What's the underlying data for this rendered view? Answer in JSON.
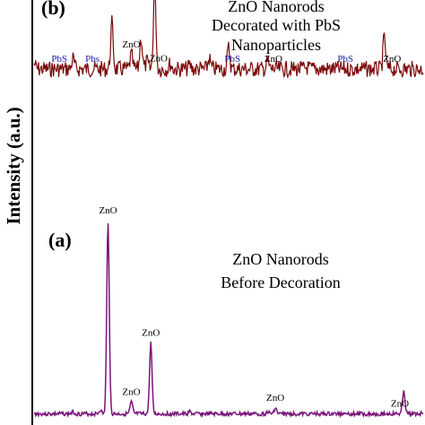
{
  "chart_data": [
    {
      "type": "line",
      "panel_label": "(b)",
      "caption_lines": [
        "ZnO Nanorods",
        "Decorated with PbS",
        "Nanoparticles"
      ],
      "color": "#7b0a0a",
      "x": [
        0,
        10,
        20,
        25,
        27.5,
        29,
        31,
        35,
        40,
        45,
        48,
        50,
        52,
        55,
        60,
        70,
        80,
        90,
        100
      ],
      "y": [
        55,
        58,
        78,
        60,
        70,
        56,
        100,
        55,
        54,
        58,
        52,
        64,
        52,
        52,
        56,
        53,
        52,
        70,
        52
      ],
      "annotations": [
        {
          "text": "PbS",
          "color": "#1a1ab0",
          "x": 6.5
        },
        {
          "text": "Pbs",
          "color": "#1a1ab0",
          "x": 15
        },
        {
          "text": "ZnO",
          "color": "#000000",
          "x": 25
        },
        {
          "text": "ZnO",
          "color": "#000000",
          "x": 32
        },
        {
          "text": "PbS",
          "color": "#1a1ab0",
          "x": 51
        },
        {
          "text": "ZnO",
          "color": "#000000",
          "x": 61.5
        },
        {
          "text": "PbS",
          "color": "#1a1ab0",
          "x": 80
        },
        {
          "text": "ZnO",
          "color": "#000000",
          "x": 92
        }
      ]
    },
    {
      "type": "line",
      "panel_label": "(a)",
      "caption_lines": [
        "ZnO Nanorods",
        "Before Decoration"
      ],
      "color": "#7a147a",
      "x": [
        0,
        10,
        17,
        19,
        25,
        30,
        40,
        50,
        60,
        62,
        70,
        80,
        90,
        95,
        100
      ],
      "y": [
        2,
        3,
        4,
        100,
        8,
        38,
        3,
        2,
        3,
        5,
        2,
        3,
        2,
        14,
        3
      ],
      "annotations": [
        {
          "text": "ZnO",
          "color": "#000000",
          "x": 19
        },
        {
          "text": "ZnO",
          "color": "#000000",
          "x": 25
        },
        {
          "text": "ZnO",
          "color": "#000000",
          "x": 30
        },
        {
          "text": "ZnO",
          "color": "#000000",
          "x": 62
        },
        {
          "text": "ZnO",
          "color": "#000000",
          "x": 94
        }
      ]
    }
  ],
  "ylabel": "Intensity  (a.u.)"
}
